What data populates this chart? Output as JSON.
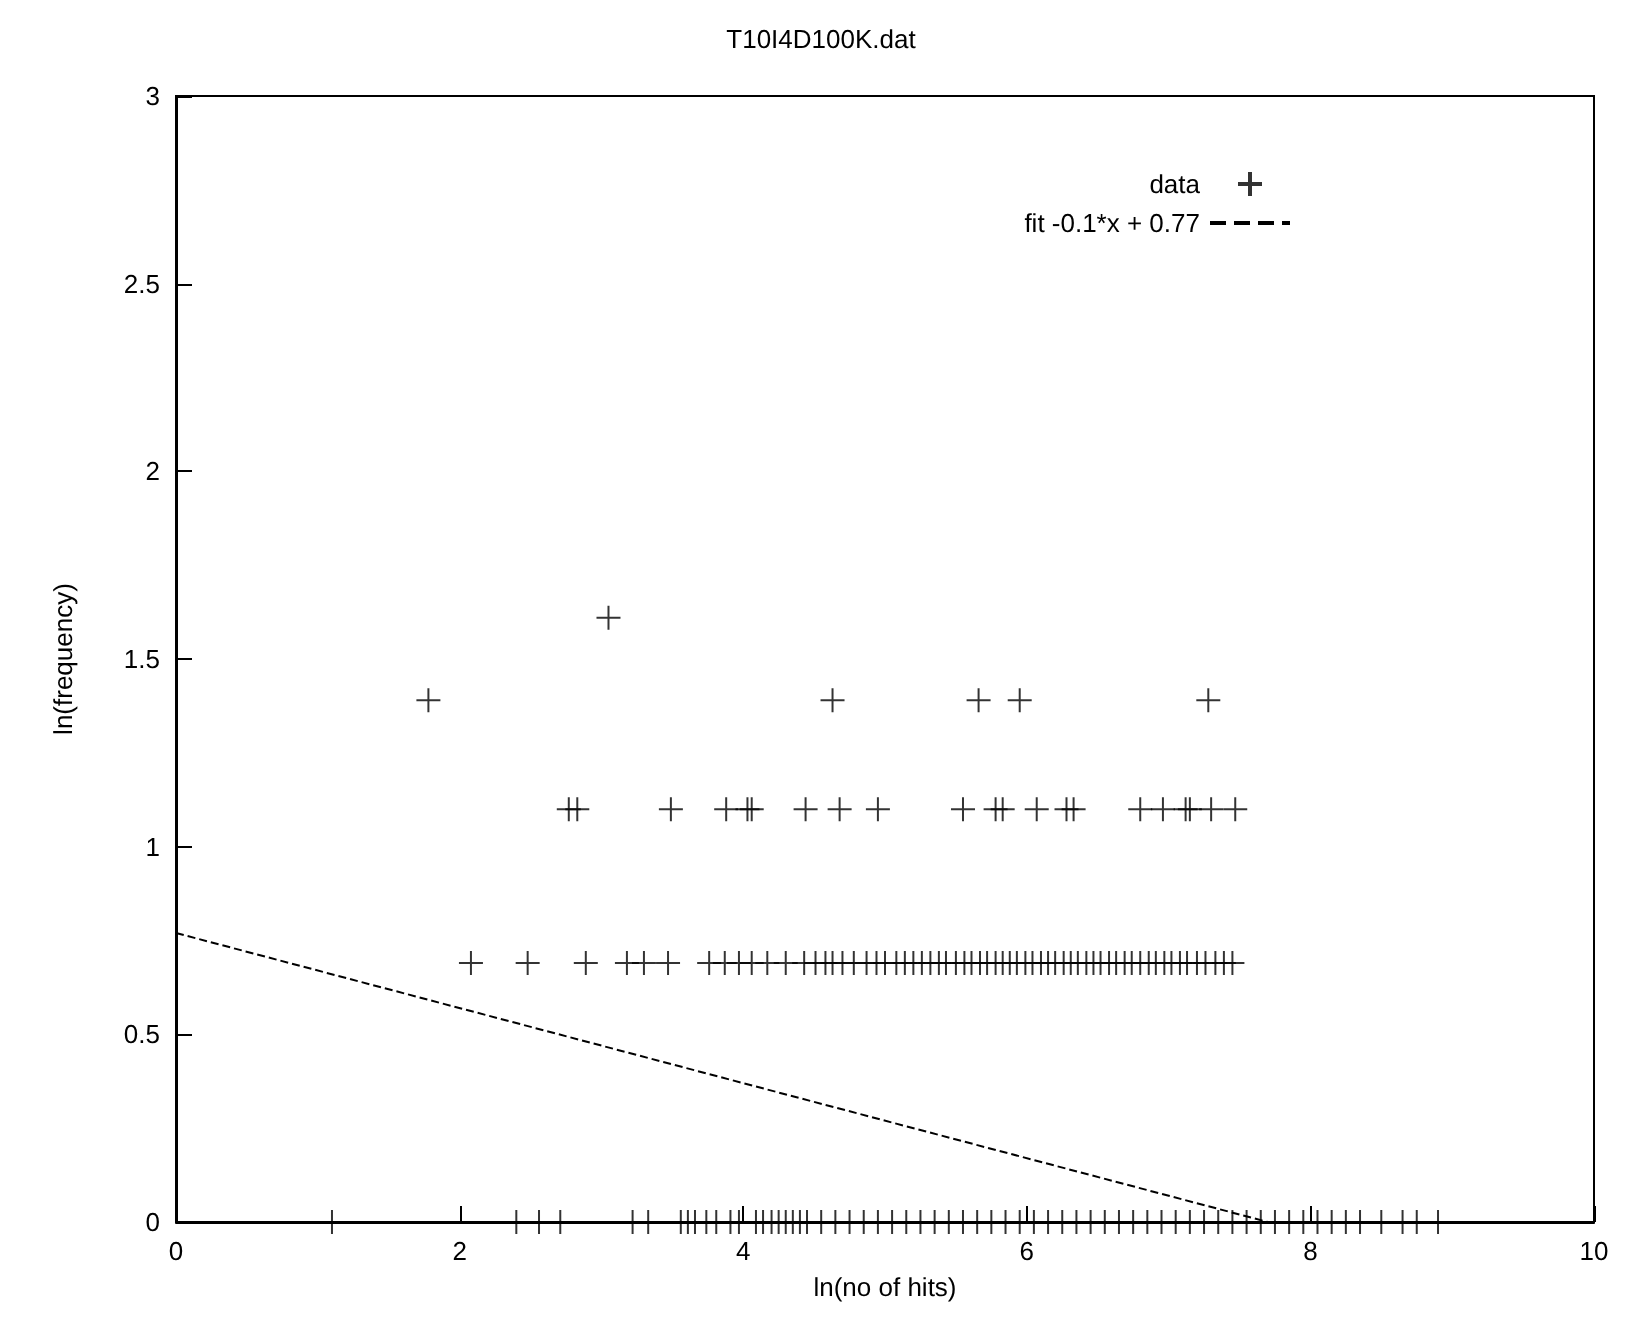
{
  "chart_data": {
    "type": "scatter",
    "title": "T10I4D100K.dat",
    "xlabel": "ln(no of hits)",
    "ylabel": "ln(frequency)",
    "xlim": [
      0,
      10
    ],
    "xticks": [
      0,
      2,
      4,
      6,
      8,
      10
    ],
    "ylim": [
      0,
      3
    ],
    "yticks": [
      0,
      0.5,
      1,
      1.5,
      2,
      2.5,
      3
    ],
    "grid": false,
    "legend": "top right",
    "marker": "cross",
    "series": [
      {
        "name": "data",
        "color": "#000000",
        "x": [
          3.05,
          1.78,
          4.63,
          5.66,
          5.95,
          7.28,
          2.77,
          2.83,
          3.49,
          3.88,
          4.03,
          4.06,
          4.44,
          4.68,
          4.95,
          5.55,
          5.78,
          5.83,
          6.07,
          6.28,
          6.33,
          6.8,
          6.96,
          7.12,
          7.15,
          7.3,
          7.47,
          2.08,
          2.48,
          2.89,
          3.18,
          3.3,
          3.47,
          3.76,
          3.87,
          3.97,
          4.06,
          4.17,
          4.3,
          4.43,
          4.51,
          4.58,
          4.63,
          4.7,
          4.78,
          4.87,
          4.94,
          5.0,
          5.08,
          5.14,
          5.2,
          5.26,
          5.32,
          5.38,
          5.43,
          5.5,
          5.56,
          5.61,
          5.67,
          5.72,
          5.78,
          5.83,
          5.88,
          5.93,
          5.99,
          6.04,
          6.1,
          6.15,
          6.2,
          6.26,
          6.31,
          6.36,
          6.42,
          6.47,
          6.52,
          6.58,
          6.63,
          6.69,
          6.74,
          6.8,
          6.86,
          6.91,
          6.97,
          7.02,
          7.08,
          7.13,
          7.2,
          7.26,
          7.33,
          7.39,
          7.45,
          1.1,
          2.4,
          2.56,
          2.71,
          3.22,
          3.33,
          3.56,
          3.61,
          3.66,
          3.74,
          3.81,
          3.91,
          3.97,
          4.09,
          4.14,
          4.2,
          4.25,
          4.3,
          4.35,
          4.4,
          4.45,
          4.55,
          4.65,
          4.75,
          4.85,
          4.95,
          5.05,
          5.15,
          5.25,
          5.35,
          5.45,
          5.55,
          5.65,
          5.75,
          5.85,
          5.95,
          6.05,
          6.15,
          6.25,
          6.35,
          6.45,
          6.55,
          6.65,
          6.75,
          6.85,
          6.95,
          7.05,
          7.15,
          7.25,
          7.35,
          7.45,
          7.55,
          7.65,
          7.75,
          7.85,
          7.95,
          8.05,
          8.15,
          8.25,
          8.35,
          8.5,
          8.65,
          8.75,
          8.9
        ],
        "values": [
          1.61,
          1.39,
          1.39,
          1.39,
          1.39,
          1.39,
          1.1,
          1.1,
          1.1,
          1.1,
          1.1,
          1.1,
          1.1,
          1.1,
          1.1,
          1.1,
          1.1,
          1.1,
          1.1,
          1.1,
          1.1,
          1.1,
          1.1,
          1.1,
          1.1,
          1.1,
          1.1,
          0.69,
          0.69,
          0.69,
          0.69,
          0.69,
          0.69,
          0.69,
          0.69,
          0.69,
          0.69,
          0.69,
          0.69,
          0.69,
          0.69,
          0.69,
          0.69,
          0.69,
          0.69,
          0.69,
          0.69,
          0.69,
          0.69,
          0.69,
          0.69,
          0.69,
          0.69,
          0.69,
          0.69,
          0.69,
          0.69,
          0.69,
          0.69,
          0.69,
          0.69,
          0.69,
          0.69,
          0.69,
          0.69,
          0.69,
          0.69,
          0.69,
          0.69,
          0.69,
          0.69,
          0.69,
          0.69,
          0.69,
          0.69,
          0.69,
          0.69,
          0.69,
          0.69,
          0.69,
          0.69,
          0.69,
          0.69,
          0.69,
          0.69,
          0.69,
          0.69,
          0.69,
          0.69,
          0.69,
          0.69,
          0,
          0,
          0,
          0,
          0,
          0,
          0,
          0,
          0,
          0,
          0,
          0,
          0,
          0,
          0,
          0,
          0,
          0,
          0,
          0,
          0,
          0,
          0,
          0,
          0,
          0,
          0,
          0,
          0,
          0,
          0,
          0,
          0,
          0,
          0,
          0,
          0,
          0,
          0,
          0,
          0,
          0,
          0,
          0,
          0,
          0,
          0,
          0,
          0,
          0,
          0,
          0,
          0,
          0,
          0,
          0,
          0,
          0,
          0,
          0,
          0,
          0,
          0,
          0
        ]
      },
      {
        "name": "fit -0.1*x + 0.77",
        "color": "#000000",
        "type": "line",
        "marker": "none",
        "line_style": "dashed",
        "x": [
          0,
          7.7
        ],
        "values": [
          0.77,
          0
        ]
      }
    ]
  }
}
